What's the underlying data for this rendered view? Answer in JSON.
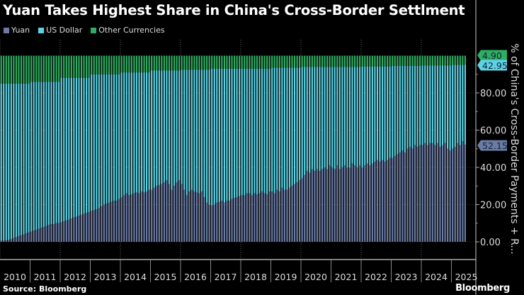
{
  "title": "Yuan Takes Highest Share in China's Cross-Border Settlment",
  "source": "Source: Bloomberg",
  "logo": "Bloomberg",
  "chart_data": {
    "type": "bar",
    "stacked": true,
    "title": "Yuan Takes Highest Share in China's Cross-Border Settlment",
    "ylabel": "% of China's Cross-Border Payments + R...",
    "ylim": [
      0,
      100
    ],
    "yticks": [
      "0.00",
      "20.00",
      "40.00",
      "60.00",
      "80.00"
    ],
    "ytick_values": [
      0,
      20,
      40,
      60,
      80
    ],
    "xticks": [
      "2010",
      "2011",
      "2012",
      "2013",
      "2014",
      "2015",
      "2016",
      "2017",
      "2018",
      "2019",
      "2020",
      "2021",
      "2022",
      "2023",
      "2024",
      "2025"
    ],
    "start_year": 2010,
    "frequency": "monthly",
    "legend": [
      "Yuan",
      "US Dollar",
      "Other Currencies"
    ],
    "colors": {
      "yuan": "#6b7ba3",
      "usd": "#5cd3e4",
      "other": "#2eae62"
    },
    "last_labels": {
      "other": "4.90",
      "usd": "42.95",
      "yuan": "52.15"
    },
    "yuan": [
      0.5,
      0.6,
      0.8,
      1,
      1.5,
      2,
      2.5,
      3,
      3.5,
      4,
      4.5,
      5,
      5.5,
      6,
      6.5,
      7,
      7.5,
      8,
      8.5,
      9,
      9.5,
      9.5,
      10,
      10,
      10.5,
      11,
      11.5,
      12,
      12.5,
      13,
      13.5,
      14,
      14.5,
      15,
      15.5,
      16,
      16.5,
      17,
      17.5,
      18,
      19,
      20,
      20.5,
      21,
      21.5,
      22,
      22,
      23,
      24,
      25,
      26,
      25,
      25.5,
      26,
      26.5,
      26,
      27,
      26.5,
      27,
      28,
      28,
      29,
      30,
      30.5,
      31,
      32,
      33,
      31,
      28,
      30,
      32,
      33,
      31,
      28,
      25,
      27,
      28,
      27,
      26.5,
      26,
      27,
      24,
      21,
      20,
      19.5,
      20,
      21,
      21.5,
      22,
      21,
      22,
      22,
      23,
      23.5,
      24,
      24.5,
      25,
      25,
      26,
      26,
      25,
      26,
      25.5,
      26,
      27,
      26,
      25.5,
      27,
      27,
      26,
      28,
      27,
      29,
      28,
      28,
      29,
      30,
      31,
      32,
      33,
      34,
      36,
      38,
      37,
      39,
      38,
      39,
      38,
      39,
      40,
      39,
      41,
      40,
      39,
      41,
      39,
      40,
      41,
      40,
      40,
      42,
      41,
      40,
      41,
      40,
      41,
      42,
      41,
      42,
      43,
      44,
      43,
      44,
      43,
      44,
      45,
      45,
      46,
      47,
      48,
      49,
      48,
      50,
      51,
      50,
      52,
      51,
      52,
      52,
      53,
      52,
      53,
      53,
      52,
      53,
      51,
      52,
      53,
      50,
      49,
      50,
      51,
      53,
      52,
      54,
      52.15
    ],
    "other_currencies_annual": [
      15,
      14,
      12,
      10,
      9,
      8,
      7.5,
      7,
      7,
      6.5,
      6,
      6,
      5.8,
      5.5,
      5.2,
      4.9
    ]
  }
}
